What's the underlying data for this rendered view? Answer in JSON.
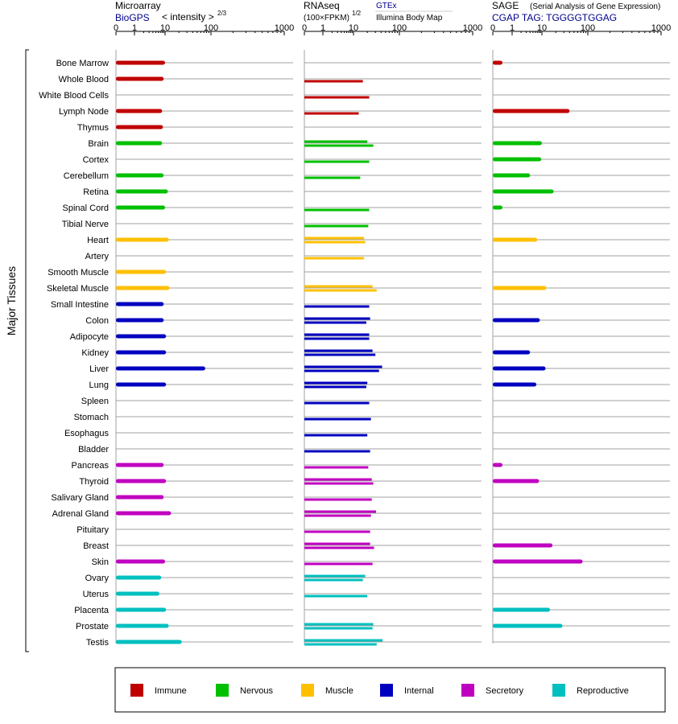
{
  "header": {
    "microarray_title": "Microarray",
    "microarray_source": "BioGPS",
    "microarray_unit": "< intensity >",
    "microarray_unit_exp": "2/3",
    "rnaseq_title": "RNAseq",
    "rnaseq_unit": "(100×FPKM)",
    "rnaseq_unit_exp": "1/2",
    "rnaseq_src1": "GTEx",
    "rnaseq_src2": "Illumina Body Map",
    "sage_title": "SAGE",
    "sage_sub": "(Serial Analysis of Gene Expression)",
    "sage_tag": "CGAP TAG: TGGGGTGGAG"
  },
  "side_label": "Major Tissues",
  "legend": [
    {
      "label": "Immune",
      "color": "#c00000"
    },
    {
      "label": "Nervous",
      "color": "#00c000"
    },
    {
      "label": "Muscle",
      "color": "#ffc000"
    },
    {
      "label": "Internal",
      "color": "#0000c0"
    },
    {
      "label": "Secretory",
      "color": "#c000c0"
    },
    {
      "label": "Reproductive",
      "color": "#00c0c0"
    }
  ],
  "chart_data": {
    "type": "bar",
    "orientation": "horizontal",
    "axis_ticks": [
      "0",
      "1",
      "10",
      "100",
      "1000"
    ],
    "xlim": [
      0,
      1000
    ],
    "panels": [
      "Microarray",
      "RNAseq",
      "SAGE"
    ],
    "categories": [
      "Bone Marrow",
      "Whole Blood",
      "White Blood Cells",
      "Lymph Node",
      "Thymus",
      "Brain",
      "Cortex",
      "Cerebellum",
      "Retina",
      "Spinal Cord",
      "Tibial Nerve",
      "Heart",
      "Artery",
      "Smooth Muscle",
      "Skeletal Muscle",
      "Small Intestine",
      "Colon",
      "Adipocyte",
      "Kidney",
      "Liver",
      "Lung",
      "Spleen",
      "Stomach",
      "Esophagus",
      "Bladder",
      "Pancreas",
      "Thyroid",
      "Salivary Gland",
      "Adrenal Gland",
      "Pituitary",
      "Breast",
      "Skin",
      "Ovary",
      "Uterus",
      "Placenta",
      "Prostate",
      "Testis"
    ],
    "groups": [
      "Immune",
      "Immune",
      "Immune",
      "Immune",
      "Immune",
      "Nervous",
      "Nervous",
      "Nervous",
      "Nervous",
      "Nervous",
      "Nervous",
      "Muscle",
      "Muscle",
      "Muscle",
      "Muscle",
      "Internal",
      "Internal",
      "Internal",
      "Internal",
      "Internal",
      "Internal",
      "Internal",
      "Internal",
      "Internal",
      "Internal",
      "Secretory",
      "Secretory",
      "Secretory",
      "Secretory",
      "Secretory",
      "Secretory",
      "Secretory",
      "Reproductive",
      "Reproductive",
      "Reproductive",
      "Reproductive",
      "Reproductive"
    ],
    "microarray": [
      10,
      9,
      null,
      8,
      8.5,
      8,
      null,
      9,
      11.5,
      10,
      null,
      12,
      null,
      10.5,
      12.5,
      9,
      9,
      10.5,
      10.5,
      75,
      10.5,
      null,
      null,
      null,
      null,
      9,
      10.5,
      9,
      13.5,
      null,
      null,
      10,
      7.5,
      6.5,
      10.5,
      12,
      23
    ],
    "rnaseq": [
      [
        null,
        null
      ],
      [
        null,
        16
      ],
      [
        null,
        22
      ],
      [
        null,
        13
      ],
      [
        null,
        null
      ],
      [
        20,
        27
      ],
      [
        null,
        22
      ],
      [
        null,
        14
      ],
      [
        null,
        null
      ],
      [
        null,
        22
      ],
      [
        null,
        21
      ],
      [
        17,
        18
      ],
      [
        null,
        17
      ],
      [
        null,
        null
      ],
      [
        26,
        32
      ],
      [
        null,
        22
      ],
      [
        23,
        19
      ],
      [
        22,
        22
      ],
      [
        26,
        30
      ],
      [
        42,
        36
      ],
      [
        20,
        19
      ],
      [
        null,
        22
      ],
      [
        null,
        24
      ],
      [
        null,
        20
      ],
      [
        null,
        23
      ],
      [
        null,
        21
      ],
      [
        25,
        27
      ],
      [
        null,
        25
      ],
      [
        31,
        24
      ],
      [
        null,
        23
      ],
      [
        23,
        28
      ],
      [
        null,
        26
      ],
      [
        18,
        16
      ],
      [
        null,
        20
      ],
      [
        null,
        null
      ],
      [
        27,
        26
      ],
      [
        43,
        32
      ]
    ],
    "sage": [
      0.5,
      null,
      null,
      40,
      null,
      10,
      9.5,
      4,
      18,
      0.5,
      null,
      7,
      null,
      null,
      12.5,
      null,
      8.5,
      null,
      4,
      12,
      6.5,
      null,
      null,
      null,
      null,
      0.5,
      8,
      null,
      null,
      null,
      17,
      77,
      null,
      null,
      15,
      28,
      null
    ]
  }
}
